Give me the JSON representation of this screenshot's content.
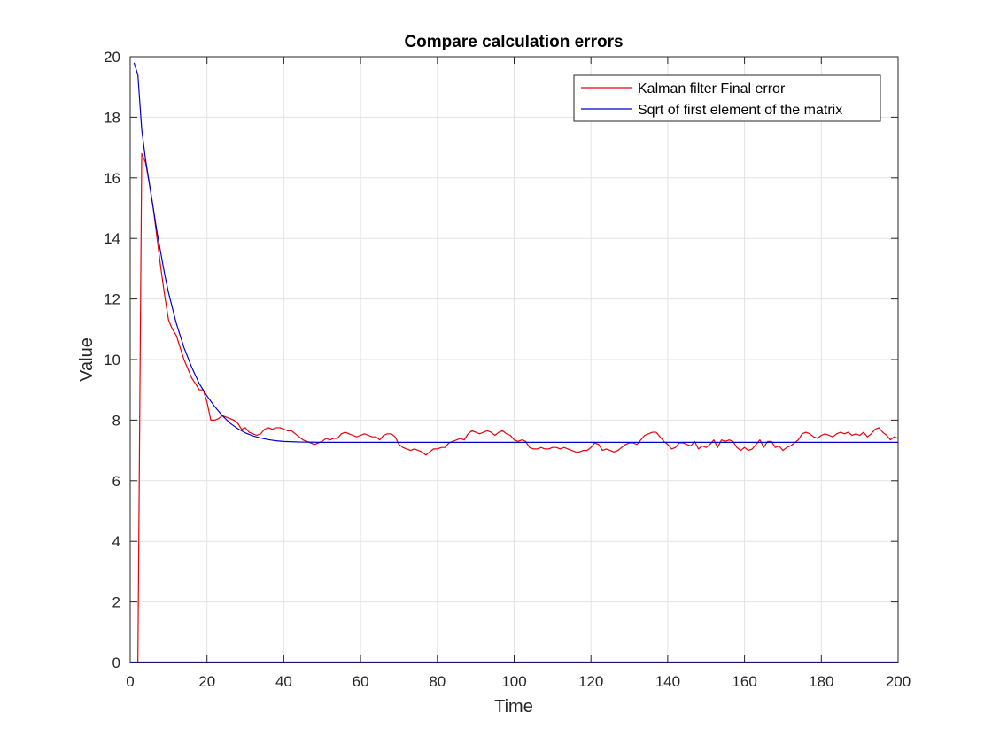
{
  "chart_data": {
    "type": "line",
    "title": "Compare calculation errors",
    "xlabel": "Time",
    "ylabel": "Value",
    "xlim": [
      0,
      200
    ],
    "ylim": [
      0,
      20
    ],
    "xticks": [
      0,
      20,
      40,
      60,
      80,
      100,
      120,
      140,
      160,
      180,
      200
    ],
    "yticks": [
      0,
      2,
      4,
      6,
      8,
      10,
      12,
      14,
      16,
      18,
      20
    ],
    "xtick_labels": [
      "0",
      "20",
      "40",
      "60",
      "80",
      "100",
      "120",
      "140",
      "160",
      "180",
      "200"
    ],
    "ytick_labels": [
      "0",
      "2",
      "4",
      "6",
      "8",
      "10",
      "12",
      "14",
      "16",
      "18",
      "20"
    ],
    "grid": true,
    "legend_position": "top-right",
    "series": [
      {
        "name": "Kalman filter Final error",
        "color": "#e8000b",
        "points": [
          [
            1,
            0
          ],
          [
            2,
            0
          ],
          [
            3,
            16.8
          ],
          [
            4,
            16.5
          ],
          [
            5,
            15.8
          ],
          [
            6,
            15.0
          ],
          [
            7,
            14.0
          ],
          [
            8,
            13.0
          ],
          [
            9,
            12.1
          ],
          [
            10,
            11.3
          ],
          [
            11,
            11.0
          ],
          [
            12,
            10.8
          ],
          [
            13,
            10.4
          ],
          [
            14,
            10.0
          ],
          [
            15,
            9.7
          ],
          [
            16,
            9.4
          ],
          [
            17,
            9.2
          ],
          [
            18,
            9.0
          ],
          [
            19,
            9.0
          ],
          [
            20,
            8.6
          ],
          [
            21,
            8.0
          ],
          [
            22,
            8.0
          ],
          [
            23,
            8.05
          ],
          [
            24,
            8.15
          ],
          [
            25,
            8.1
          ],
          [
            26,
            8.05
          ],
          [
            27,
            8.0
          ],
          [
            28,
            7.9
          ],
          [
            29,
            7.7
          ],
          [
            30,
            7.75
          ],
          [
            31,
            7.6
          ],
          [
            32,
            7.55
          ],
          [
            33,
            7.5
          ],
          [
            34,
            7.55
          ],
          [
            35,
            7.7
          ],
          [
            36,
            7.75
          ],
          [
            37,
            7.7
          ],
          [
            38,
            7.75
          ],
          [
            39,
            7.75
          ],
          [
            40,
            7.7
          ],
          [
            41,
            7.65
          ],
          [
            42,
            7.65
          ],
          [
            43,
            7.55
          ],
          [
            44,
            7.45
          ],
          [
            45,
            7.35
          ],
          [
            46,
            7.3
          ],
          [
            47,
            7.25
          ],
          [
            48,
            7.2
          ],
          [
            49,
            7.25
          ],
          [
            50,
            7.3
          ],
          [
            51,
            7.4
          ],
          [
            52,
            7.35
          ],
          [
            53,
            7.4
          ],
          [
            54,
            7.4
          ],
          [
            55,
            7.55
          ],
          [
            56,
            7.6
          ],
          [
            57,
            7.55
          ],
          [
            58,
            7.5
          ],
          [
            59,
            7.45
          ],
          [
            60,
            7.5
          ],
          [
            61,
            7.55
          ],
          [
            62,
            7.5
          ],
          [
            63,
            7.45
          ],
          [
            64,
            7.45
          ],
          [
            65,
            7.35
          ],
          [
            66,
            7.5
          ],
          [
            67,
            7.55
          ],
          [
            68,
            7.55
          ],
          [
            69,
            7.45
          ],
          [
            70,
            7.2
          ],
          [
            71,
            7.1
          ],
          [
            72,
            7.05
          ],
          [
            73,
            7.0
          ],
          [
            74,
            7.05
          ],
          [
            75,
            7.0
          ],
          [
            76,
            6.95
          ],
          [
            77,
            6.85
          ],
          [
            78,
            6.95
          ],
          [
            79,
            7.05
          ],
          [
            80,
            7.05
          ],
          [
            81,
            7.1
          ],
          [
            82,
            7.1
          ],
          [
            83,
            7.25
          ],
          [
            84,
            7.3
          ],
          [
            85,
            7.35
          ],
          [
            86,
            7.4
          ],
          [
            87,
            7.35
          ],
          [
            88,
            7.55
          ],
          [
            89,
            7.65
          ],
          [
            90,
            7.6
          ],
          [
            91,
            7.55
          ],
          [
            92,
            7.6
          ],
          [
            93,
            7.65
          ],
          [
            94,
            7.6
          ],
          [
            95,
            7.5
          ],
          [
            96,
            7.6
          ],
          [
            97,
            7.65
          ],
          [
            98,
            7.55
          ],
          [
            99,
            7.5
          ],
          [
            100,
            7.35
          ],
          [
            101,
            7.3
          ],
          [
            102,
            7.35
          ],
          [
            103,
            7.3
          ],
          [
            104,
            7.1
          ],
          [
            105,
            7.05
          ],
          [
            106,
            7.05
          ],
          [
            107,
            7.1
          ],
          [
            108,
            7.05
          ],
          [
            109,
            7.05
          ],
          [
            110,
            7.1
          ],
          [
            111,
            7.1
          ],
          [
            112,
            7.05
          ],
          [
            113,
            7.1
          ],
          [
            114,
            7.05
          ],
          [
            115,
            7.0
          ],
          [
            116,
            6.95
          ],
          [
            117,
            6.95
          ],
          [
            118,
            7.0
          ],
          [
            119,
            7.0
          ],
          [
            120,
            7.1
          ],
          [
            121,
            7.25
          ],
          [
            122,
            7.2
          ],
          [
            123,
            7.0
          ],
          [
            124,
            7.05
          ],
          [
            125,
            7.0
          ],
          [
            126,
            6.95
          ],
          [
            127,
            7.0
          ],
          [
            128,
            7.1
          ],
          [
            129,
            7.2
          ],
          [
            130,
            7.25
          ],
          [
            131,
            7.25
          ],
          [
            132,
            7.2
          ],
          [
            133,
            7.35
          ],
          [
            134,
            7.5
          ],
          [
            135,
            7.55
          ],
          [
            136,
            7.6
          ],
          [
            137,
            7.6
          ],
          [
            138,
            7.45
          ],
          [
            139,
            7.3
          ],
          [
            140,
            7.2
          ],
          [
            141,
            7.05
          ],
          [
            142,
            7.1
          ],
          [
            143,
            7.25
          ],
          [
            144,
            7.25
          ],
          [
            145,
            7.2
          ],
          [
            146,
            7.15
          ],
          [
            147,
            7.3
          ],
          [
            148,
            7.05
          ],
          [
            149,
            7.15
          ],
          [
            150,
            7.1
          ],
          [
            151,
            7.2
          ],
          [
            152,
            7.35
          ],
          [
            153,
            7.1
          ],
          [
            154,
            7.35
          ],
          [
            155,
            7.3
          ],
          [
            156,
            7.35
          ],
          [
            157,
            7.3
          ],
          [
            158,
            7.1
          ],
          [
            159,
            7.0
          ],
          [
            160,
            7.1
          ],
          [
            161,
            7.0
          ],
          [
            162,
            7.05
          ],
          [
            163,
            7.2
          ],
          [
            164,
            7.35
          ],
          [
            165,
            7.1
          ],
          [
            166,
            7.3
          ],
          [
            167,
            7.3
          ],
          [
            168,
            7.1
          ],
          [
            169,
            7.15
          ],
          [
            170,
            7.0
          ],
          [
            171,
            7.1
          ],
          [
            172,
            7.15
          ],
          [
            173,
            7.25
          ],
          [
            174,
            7.35
          ],
          [
            175,
            7.55
          ],
          [
            176,
            7.6
          ],
          [
            177,
            7.55
          ],
          [
            178,
            7.45
          ],
          [
            179,
            7.4
          ],
          [
            180,
            7.5
          ],
          [
            181,
            7.55
          ],
          [
            182,
            7.5
          ],
          [
            183,
            7.45
          ],
          [
            184,
            7.55
          ],
          [
            185,
            7.6
          ],
          [
            186,
            7.55
          ],
          [
            187,
            7.6
          ],
          [
            188,
            7.5
          ],
          [
            189,
            7.55
          ],
          [
            190,
            7.5
          ],
          [
            191,
            7.6
          ],
          [
            192,
            7.45
          ],
          [
            193,
            7.55
          ],
          [
            194,
            7.7
          ],
          [
            195,
            7.75
          ],
          [
            196,
            7.6
          ],
          [
            197,
            7.5
          ],
          [
            198,
            7.35
          ],
          [
            199,
            7.45
          ],
          [
            200,
            7.4
          ]
        ]
      },
      {
        "name": "Sqrt of first element of the matrix",
        "color": "#0000cc",
        "points": [
          [
            1,
            19.8
          ],
          [
            2,
            19.4
          ],
          [
            3,
            17.6
          ],
          [
            4,
            16.6
          ],
          [
            5,
            15.8
          ],
          [
            6,
            15.0
          ],
          [
            7,
            14.2
          ],
          [
            8,
            13.5
          ],
          [
            9,
            12.8
          ],
          [
            10,
            12.2
          ],
          [
            12,
            11.2
          ],
          [
            14,
            10.4
          ],
          [
            16,
            9.75
          ],
          [
            18,
            9.2
          ],
          [
            20,
            8.8
          ],
          [
            22,
            8.45
          ],
          [
            24,
            8.15
          ],
          [
            26,
            7.9
          ],
          [
            28,
            7.72
          ],
          [
            30,
            7.58
          ],
          [
            32,
            7.48
          ],
          [
            34,
            7.41
          ],
          [
            36,
            7.36
          ],
          [
            38,
            7.32
          ],
          [
            40,
            7.3
          ],
          [
            44,
            7.28
          ],
          [
            50,
            7.27
          ],
          [
            60,
            7.27
          ],
          [
            100,
            7.27
          ],
          [
            150,
            7.27
          ],
          [
            200,
            7.27
          ]
        ]
      }
    ],
    "baseline": {
      "color": "#0000cc",
      "value": 0
    }
  }
}
